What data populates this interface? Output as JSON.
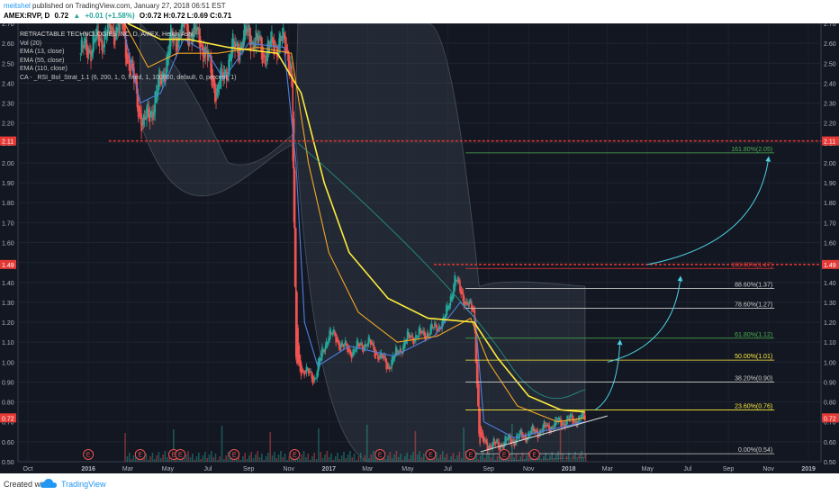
{
  "header": {
    "author": "meitshel",
    "published_text": "published on TradingView.com, January 27, 2018 06:51 EST",
    "symbol": "AMEX:RVP, D",
    "price": "0.72",
    "change": "+0.01 (+1.58%)",
    "ohlc": "O:0.72 H:0.72 L:0.69 C:0.71"
  },
  "legend": {
    "title": "RETRACTABLE TECHNOLOGIES INC, D, AMEX, Heikin Ashi",
    "lines": [
      "Vol (20)",
      "EMA (13, close)",
      "EMA (55, close)",
      "EMA (110, close)",
      "CA - _RSI_Bol_Strat_1.1 (6, 200, 1, 0, fixed, 1, 100000, default, 0, percent, 1)"
    ]
  },
  "footer": {
    "created": "Created with",
    "brand": "TradingView"
  },
  "colors": {
    "background": "#131722",
    "bull": "#26a69a",
    "bear": "#ef5350",
    "ema13": "#4f7fe0",
    "ema55": "#f5a623",
    "ema110": "#ffeb3b",
    "band": "#5a6a78",
    "resistance": "#e53935",
    "arrow": "#4dd0e1"
  },
  "chart_data": {
    "type": "candlestick",
    "title": "RETRACTABLE TECHNOLOGIES INC, D, AMEX, Heikin Ashi",
    "ylim": [
      0.5,
      2.7
    ],
    "y_ticks": [
      0.5,
      0.6,
      0.7,
      0.8,
      0.9,
      1.0,
      1.1,
      1.2,
      1.3,
      1.4,
      1.5,
      1.6,
      1.7,
      1.8,
      1.9,
      2.0,
      2.1,
      2.2,
      2.3,
      2.4,
      2.5,
      2.6,
      2.7
    ],
    "x_labels": [
      "Oct",
      "2016",
      "Mar",
      "May",
      "Jul",
      "Sep",
      "Nov",
      "2017",
      "Mar",
      "May",
      "Jul",
      "Sep",
      "Nov",
      "2018",
      "Mar",
      "May",
      "Jul",
      "Sep",
      "Nov",
      "2019"
    ],
    "price_path": [
      {
        "t": "2015-12-20",
        "v": 2.55
      },
      {
        "t": "2016-02-20",
        "v": 2.7
      },
      {
        "t": "2016-03-10",
        "v": 2.4
      },
      {
        "t": "2016-03-25",
        "v": 2.18
      },
      {
        "t": "2016-04-15",
        "v": 2.35
      },
      {
        "t": "2016-05-05",
        "v": 2.6
      },
      {
        "t": "2016-05-25",
        "v": 2.68
      },
      {
        "t": "2016-06-20",
        "v": 2.62
      },
      {
        "t": "2016-07-15",
        "v": 2.35
      },
      {
        "t": "2016-08-05",
        "v": 2.55
      },
      {
        "t": "2016-09-01",
        "v": 2.65
      },
      {
        "t": "2016-09-25",
        "v": 2.55
      },
      {
        "t": "2016-10-20",
        "v": 2.62
      },
      {
        "t": "2016-11-05",
        "v": 2.5
      },
      {
        "t": "2016-11-12",
        "v": 1.0
      },
      {
        "t": "2016-11-25",
        "v": 0.95
      },
      {
        "t": "2016-12-10",
        "v": 0.92
      },
      {
        "t": "2017-01-01",
        "v": 1.15
      },
      {
        "t": "2017-02-01",
        "v": 1.05
      },
      {
        "t": "2017-03-01",
        "v": 1.1
      },
      {
        "t": "2017-04-01",
        "v": 0.98
      },
      {
        "t": "2017-05-01",
        "v": 1.12
      },
      {
        "t": "2017-06-01",
        "v": 1.15
      },
      {
        "t": "2017-06-25",
        "v": 1.2
      },
      {
        "t": "2017-07-12",
        "v": 1.42
      },
      {
        "t": "2017-07-28",
        "v": 1.3
      },
      {
        "t": "2017-08-10",
        "v": 1.25
      },
      {
        "t": "2017-08-18",
        "v": 0.6
      },
      {
        "t": "2017-09-10",
        "v": 0.58
      },
      {
        "t": "2017-10-15",
        "v": 0.62
      },
      {
        "t": "2017-11-20",
        "v": 0.66
      },
      {
        "t": "2017-12-20",
        "v": 0.7
      },
      {
        "t": "2018-01-26",
        "v": 0.72
      }
    ],
    "series": [
      {
        "name": "EMA (13, close)",
        "points": [
          {
            "t": "2016-02-25",
            "v": 2.65
          },
          {
            "t": "2016-03-20",
            "v": 2.3
          },
          {
            "t": "2016-04-20",
            "v": 2.35
          },
          {
            "t": "2016-05-25",
            "v": 2.62
          },
          {
            "t": "2016-07-01",
            "v": 2.55
          },
          {
            "t": "2016-07-25",
            "v": 2.42
          },
          {
            "t": "2016-09-01",
            "v": 2.6
          },
          {
            "t": "2016-10-25",
            "v": 2.58
          },
          {
            "t": "2016-11-12",
            "v": 2.0
          },
          {
            "t": "2016-11-25",
            "v": 1.2
          },
          {
            "t": "2016-12-15",
            "v": 0.98
          },
          {
            "t": "2017-02-01",
            "v": 1.08
          },
          {
            "t": "2017-04-10",
            "v": 1.03
          },
          {
            "t": "2017-06-10",
            "v": 1.13
          },
          {
            "t": "2017-07-20",
            "v": 1.3
          },
          {
            "t": "2017-08-12",
            "v": 1.22
          },
          {
            "t": "2017-08-25",
            "v": 0.7
          },
          {
            "t": "2017-10-10",
            "v": 0.62
          },
          {
            "t": "2018-01-26",
            "v": 0.7
          }
        ]
      },
      {
        "name": "EMA (55, close)",
        "points": [
          {
            "t": "2016-02-25",
            "v": 2.7
          },
          {
            "t": "2016-04-01",
            "v": 2.48
          },
          {
            "t": "2016-05-15",
            "v": 2.55
          },
          {
            "t": "2016-07-15",
            "v": 2.55
          },
          {
            "t": "2016-09-15",
            "v": 2.58
          },
          {
            "t": "2016-11-05",
            "v": 2.55
          },
          {
            "t": "2016-12-01",
            "v": 2.0
          },
          {
            "t": "2017-01-01",
            "v": 1.55
          },
          {
            "t": "2017-02-15",
            "v": 1.25
          },
          {
            "t": "2017-04-15",
            "v": 1.1
          },
          {
            "t": "2017-06-15",
            "v": 1.13
          },
          {
            "t": "2017-08-05",
            "v": 1.22
          },
          {
            "t": "2017-09-01",
            "v": 1.0
          },
          {
            "t": "2017-10-15",
            "v": 0.78
          },
          {
            "t": "2017-12-15",
            "v": 0.7
          },
          {
            "t": "2018-01-26",
            "v": 0.72
          }
        ]
      },
      {
        "name": "EMA (110, close)",
        "points": [
          {
            "t": "2016-03-01",
            "v": 2.7
          },
          {
            "t": "2016-04-20",
            "v": 2.62
          },
          {
            "t": "2016-06-01",
            "v": 2.62
          },
          {
            "t": "2016-08-01",
            "v": 2.58
          },
          {
            "t": "2016-10-15",
            "v": 2.55
          },
          {
            "t": "2016-11-20",
            "v": 2.35
          },
          {
            "t": "2016-12-25",
            "v": 1.9
          },
          {
            "t": "2017-02-01",
            "v": 1.55
          },
          {
            "t": "2017-04-01",
            "v": 1.32
          },
          {
            "t": "2017-06-01",
            "v": 1.22
          },
          {
            "t": "2017-08-10",
            "v": 1.2
          },
          {
            "t": "2017-09-15",
            "v": 1.02
          },
          {
            "t": "2017-11-01",
            "v": 0.83
          },
          {
            "t": "2017-12-20",
            "v": 0.76
          },
          {
            "t": "2018-01-26",
            "v": 0.75
          }
        ]
      }
    ],
    "horizontal_levels": [
      {
        "value": 2.11,
        "label": "2.11",
        "style": "dashed-red"
      },
      {
        "value": 1.49,
        "label": "1.49",
        "style": "dashed-red"
      }
    ],
    "current_price_label": "0.72",
    "fibonacci": [
      {
        "label": "161.80%(2.05)",
        "value": 2.05,
        "color": "#4caf50"
      },
      {
        "label": "100.00%(1.47)",
        "value": 1.47,
        "color": "#e53935"
      },
      {
        "label": "88.60%(1.37)",
        "value": 1.37,
        "color": "#cccccc"
      },
      {
        "label": "78.60%(1.27)",
        "value": 1.27,
        "color": "#cccccc"
      },
      {
        "label": "61.80%(1.12)",
        "value": 1.12,
        "color": "#4caf50"
      },
      {
        "label": "50.00%(1.01)",
        "value": 1.01,
        "color": "#ffeb3b"
      },
      {
        "label": "38.20%(0.90)",
        "value": 0.9,
        "color": "#cccccc"
      },
      {
        "label": "23.60%(0.76)",
        "value": 0.76,
        "color": "#ffeb3b"
      },
      {
        "label": "0.00%(0.54)",
        "value": 0.54,
        "color": "#cccccc"
      }
    ],
    "earnings_markers": [
      "2016-01-01",
      "2016-03-20",
      "2016-05-10",
      "2016-05-20",
      "2016-08-10",
      "2016-11-10",
      "2017-03-20",
      "2017-06-05",
      "2017-08-05",
      "2017-09-25",
      "2017-11-10"
    ],
    "earnings_label": "E",
    "projection_arrows": [
      {
        "from": {
          "t": "2018-02-10",
          "v": 0.76
        },
        "to": {
          "t": "2018-03-20",
          "v": 1.1
        }
      },
      {
        "from": {
          "t": "2018-03-01",
          "v": 1.0
        },
        "to": {
          "t": "2018-06-20",
          "v": 1.42
        }
      },
      {
        "from": {
          "t": "2018-05-01",
          "v": 1.49
        },
        "to": {
          "t": "2018-11-01",
          "v": 2.02
        }
      }
    ],
    "grid": true
  }
}
